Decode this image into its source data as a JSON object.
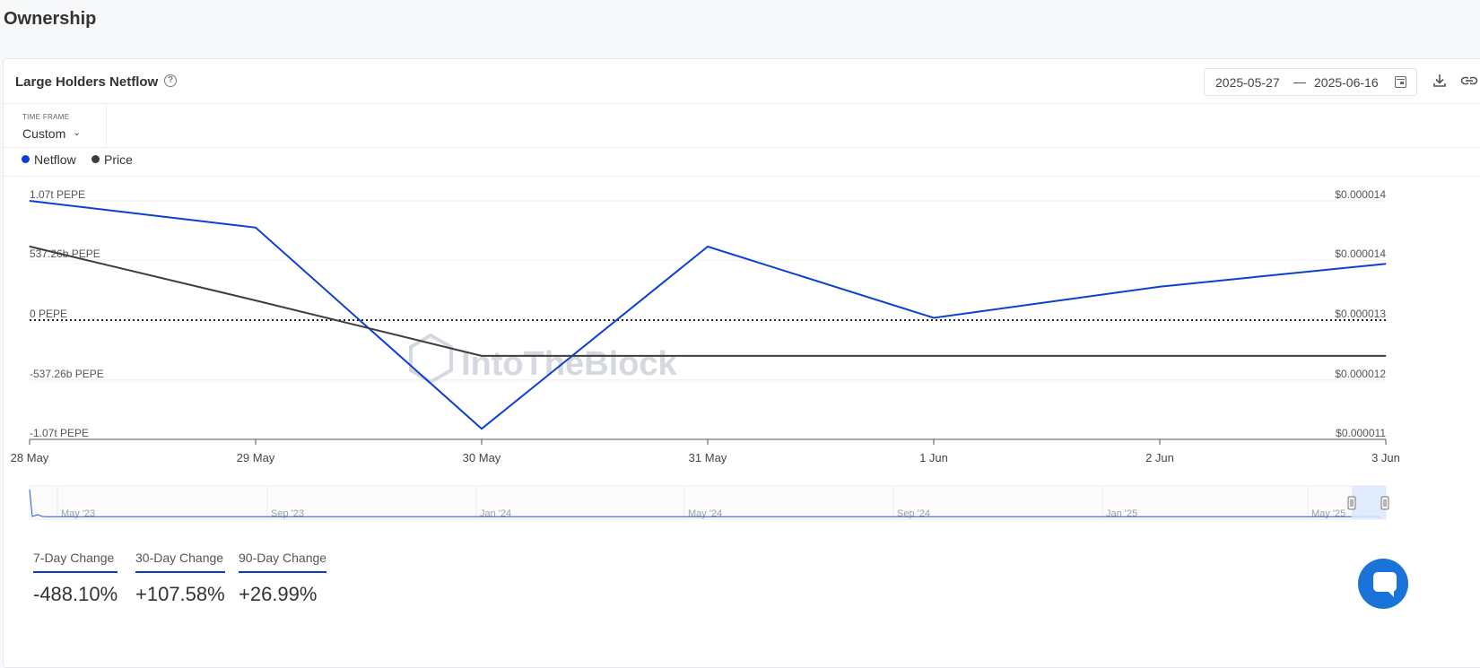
{
  "page": {
    "title": "Ownership"
  },
  "card": {
    "title": "Large Holders Netflow",
    "help_icon": "question-circle-icon",
    "date_range": {
      "start": "2025-05-27",
      "separator": "—",
      "end": "2025-06-16"
    },
    "icons": {
      "calendar": "calendar-icon",
      "download": "download-icon",
      "link": "link-icon"
    }
  },
  "timeframe": {
    "label": "TIME FRAME",
    "value": "Custom",
    "icon": "chevron-down-icon"
  },
  "legend": [
    {
      "name": "Netflow",
      "color": "#0b3fd6"
    },
    {
      "name": "Price",
      "color": "#3d3d3d"
    }
  ],
  "watermark": "IntoTheBlock",
  "chart_data": {
    "type": "line",
    "categories": [
      "28 May",
      "29 May",
      "30 May",
      "31 May",
      "1 Jun",
      "2 Jun",
      "3 Jun"
    ],
    "y_left": {
      "ticks": [
        "1.07t PEPE",
        "537.26b PEPE",
        "0 PEPE",
        "-537.26b PEPE",
        "-1.07t PEPE"
      ],
      "tick_values": [
        1070,
        537.26,
        0,
        -537.26,
        -1070
      ],
      "ylim": [
        -1070,
        1070
      ],
      "units": "billions PEPE"
    },
    "y_right": {
      "ticks": [
        "$0.000014",
        "$0.000014",
        "$0.000013",
        "$0.000012",
        "$0.000011"
      ],
      "ylim": [
        1.1e-05,
        1.44e-05
      ]
    },
    "series": [
      {
        "name": "Netflow",
        "axis": "left",
        "color": "#0b3fd6",
        "values": [
          1070,
          830,
          -975,
          660,
          20,
          300,
          505
        ]
      },
      {
        "name": "Price",
        "axis": "right",
        "color": "#3d3d3d",
        "values": [
          1.375e-05,
          1.298e-05,
          1.219e-05,
          1.219e-05,
          1.219e-05,
          1.219e-05,
          1.219e-05
        ]
      }
    ],
    "zero_line": "dotted",
    "grid": true,
    "navigator": {
      "labels": [
        "May '23",
        "Sep '23",
        "Jan '24",
        "May '24",
        "Sep '24",
        "Jan '25",
        "May '25"
      ],
      "selected_range": "end"
    }
  },
  "changes": [
    {
      "label": "7-Day Change",
      "value": "-488.10%"
    },
    {
      "label": "30-Day Change",
      "value": "+107.58%"
    },
    {
      "label": "90-Day Change",
      "value": "+26.99%"
    }
  ],
  "chat": {
    "icon": "chat-icon"
  }
}
